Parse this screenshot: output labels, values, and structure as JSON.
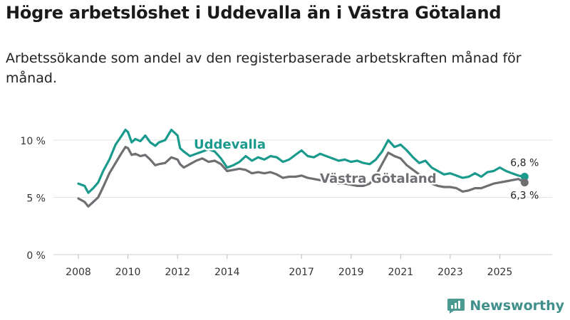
{
  "header": {
    "title": "Högre arbetslöshet i Uddevalla än i Västra Götaland",
    "subtitle": "Arbetssökande som andel av den registerbaserade arbetskraften månad för månad."
  },
  "brand": {
    "name": "Newsworthy"
  },
  "chart_data": {
    "type": "line",
    "title": "Högre arbetslöshet i Uddevalla än i Västra Götaland",
    "subtitle": "Arbetssökande som andel av den registerbaserade arbetskraften månad för månad.",
    "xlabel": "",
    "ylabel": "",
    "ylim": [
      0,
      10
    ],
    "xlim": [
      2008,
      2026.25
    ],
    "yticks": [
      0,
      5,
      10
    ],
    "ytick_labels": [
      "0 %",
      "5 %",
      "10 %"
    ],
    "xticks": [
      2008,
      2010,
      2012,
      2014,
      2017,
      2019,
      2021,
      2023,
      2025
    ],
    "xtick_labels": [
      "2008",
      "2010",
      "2012",
      "2014",
      "2017",
      "2019",
      "2021",
      "2023",
      "2025"
    ],
    "grid": true,
    "series": [
      {
        "name": "Uddevalla",
        "color": "#1a9a8c",
        "end_label": "6,8 %",
        "x": [
          2008.0,
          2008.25,
          2008.4,
          2008.6,
          2008.8,
          2009.0,
          2009.25,
          2009.5,
          2009.75,
          2009.9,
          2010.0,
          2010.15,
          2010.3,
          2010.5,
          2010.7,
          2010.9,
          2011.1,
          2011.25,
          2011.5,
          2011.75,
          2012.0,
          2012.1,
          2012.25,
          2012.5,
          2012.75,
          2013.0,
          2013.25,
          2013.5,
          2013.75,
          2014.0,
          2014.25,
          2014.5,
          2014.75,
          2015.0,
          2015.25,
          2015.5,
          2015.75,
          2016.0,
          2016.25,
          2016.5,
          2016.75,
          2017.0,
          2017.25,
          2017.5,
          2017.75,
          2018.0,
          2018.25,
          2018.5,
          2018.75,
          2019.0,
          2019.25,
          2019.5,
          2019.75,
          2020.0,
          2020.25,
          2020.5,
          2020.75,
          2021.0,
          2021.25,
          2021.5,
          2021.75,
          2022.0,
          2022.25,
          2022.5,
          2022.75,
          2023.0,
          2023.25,
          2023.5,
          2023.75,
          2024.0,
          2024.25,
          2024.5,
          2024.75,
          2025.0,
          2025.25,
          2025.5,
          2025.75,
          2026.0
        ],
        "values": [
          6.2,
          6.0,
          5.4,
          5.8,
          6.3,
          7.3,
          8.3,
          9.6,
          10.4,
          10.9,
          10.7,
          9.8,
          10.1,
          9.9,
          10.4,
          9.8,
          9.5,
          9.8,
          10.0,
          10.9,
          10.4,
          9.3,
          9.0,
          8.6,
          8.8,
          9.0,
          9.2,
          9.0,
          8.4,
          7.6,
          7.8,
          8.1,
          8.6,
          8.2,
          8.5,
          8.3,
          8.6,
          8.5,
          8.1,
          8.3,
          8.7,
          9.1,
          8.6,
          8.5,
          8.8,
          8.6,
          8.4,
          8.2,
          8.3,
          8.1,
          8.2,
          8.0,
          7.9,
          8.3,
          9.0,
          10.0,
          9.4,
          9.6,
          9.1,
          8.5,
          8.0,
          8.2,
          7.6,
          7.3,
          7.0,
          7.1,
          6.9,
          6.7,
          6.8,
          7.1,
          6.8,
          7.2,
          7.3,
          7.6,
          7.3,
          7.1,
          6.9,
          6.8
        ]
      },
      {
        "name": "Västra Götaland",
        "color": "#6e6e73",
        "end_label": "6,3 %",
        "x": [
          2008.0,
          2008.25,
          2008.4,
          2008.6,
          2008.8,
          2009.0,
          2009.25,
          2009.5,
          2009.75,
          2009.9,
          2010.0,
          2010.15,
          2010.3,
          2010.5,
          2010.7,
          2010.9,
          2011.1,
          2011.25,
          2011.5,
          2011.75,
          2012.0,
          2012.1,
          2012.25,
          2012.5,
          2012.75,
          2013.0,
          2013.25,
          2013.5,
          2013.75,
          2014.0,
          2014.25,
          2014.5,
          2014.75,
          2015.0,
          2015.25,
          2015.5,
          2015.75,
          2016.0,
          2016.25,
          2016.5,
          2016.75,
          2017.0,
          2017.25,
          2017.5,
          2017.75,
          2018.0,
          2018.25,
          2018.5,
          2018.75,
          2019.0,
          2019.25,
          2019.5,
          2019.75,
          2020.0,
          2020.25,
          2020.5,
          2020.75,
          2021.0,
          2021.25,
          2021.5,
          2021.75,
          2022.0,
          2022.25,
          2022.5,
          2022.75,
          2023.0,
          2023.25,
          2023.5,
          2023.75,
          2024.0,
          2024.25,
          2024.5,
          2024.75,
          2025.0,
          2025.25,
          2025.5,
          2025.75,
          2026.0
        ],
        "values": [
          4.9,
          4.6,
          4.2,
          4.6,
          5.0,
          5.9,
          7.1,
          8.0,
          8.9,
          9.4,
          9.3,
          8.7,
          8.8,
          8.6,
          8.7,
          8.3,
          7.8,
          7.9,
          8.0,
          8.5,
          8.3,
          7.9,
          7.6,
          7.9,
          8.2,
          8.4,
          8.1,
          8.2,
          7.9,
          7.3,
          7.4,
          7.5,
          7.4,
          7.1,
          7.2,
          7.1,
          7.2,
          7.0,
          6.7,
          6.8,
          6.8,
          6.9,
          6.7,
          6.6,
          6.5,
          6.4,
          6.3,
          6.2,
          6.2,
          6.1,
          6.0,
          6.0,
          6.2,
          6.9,
          7.9,
          8.9,
          8.6,
          8.4,
          7.8,
          7.4,
          7.0,
          6.6,
          6.2,
          6.0,
          5.9,
          5.9,
          5.8,
          5.5,
          5.6,
          5.8,
          5.8,
          6.0,
          6.2,
          6.3,
          6.4,
          6.5,
          6.6,
          6.3
        ]
      }
    ]
  }
}
